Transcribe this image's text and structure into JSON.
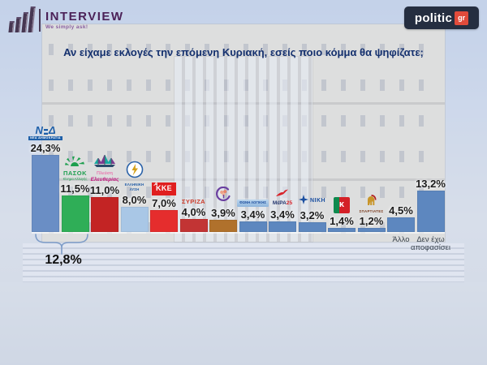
{
  "header": {
    "interview_logo": {
      "title": "INTERVIEW",
      "tagline": "We simply ask!",
      "brand_color": "#4b2158"
    },
    "politic_logo": {
      "text": "politic",
      "suffix": "gr",
      "bg_color": "#252e40",
      "accent_color": "#e14b3b"
    }
  },
  "title": "Αν είχαμε εκλογές την επόμενη Κυριακή, εσείς ποιο κόμμα θα ψηφίζατε;",
  "chart_data": {
    "type": "bar",
    "title": "Αν είχαμε εκλογές την επόμενη Κυριακή, εσείς ποιο κόμμα θα ψηφίζατε;",
    "unit": "%",
    "ylim": [
      0,
      25
    ],
    "grid": false,
    "legend": "none",
    "categories": [
      "Νέα Δημοκρατία",
      "ΠΑΣΟΚ Κίνημα Αλλαγής",
      "Πλεύση Ελευθερίας",
      "Ελληνική Λύση",
      "ΚΚΕ",
      "ΣΥΡΙΖΑ",
      "Νέα Αριστερά",
      "Φωνή Λογικής",
      "ΜέΡΑ25",
      "ΝΙΚΗ",
      "Κίνημα Δημοκρατίας",
      "Σπαρτιάτες",
      "Άλλο",
      "Δεν έχω αποφασίσει"
    ],
    "values": [
      24.3,
      11.5,
      11.0,
      8.0,
      7.0,
      4.0,
      3.9,
      3.4,
      3.4,
      3.2,
      1.4,
      1.2,
      4.5,
      13.2
    ],
    "annotation": {
      "label": "12,8%",
      "span_bar_indices": [
        0,
        1
      ],
      "bracket_color": "#7d9cc8"
    },
    "parties": [
      {
        "slug": "nea-dimokratia",
        "name": "Νέα Δημοκρατία",
        "value": 24.3,
        "label": "24,3%",
        "color": "#6a8ec5",
        "logo_kind": "nd",
        "logo_text": "ΝΔ",
        "logo_sub": "ΝΕΑ ΔΗΜΟΚΡΑΤΙΑ",
        "logo_color": "#1e5fa8"
      },
      {
        "slug": "pasok",
        "name": "ΠΑΣΟΚ Κίνημα Αλλαγής",
        "value": 11.5,
        "label": "11,5%",
        "color": "#2fae57",
        "logo_kind": "pasok",
        "logo_text": "ΠΑΣΟΚ",
        "logo_sub": "Κίνημα Αλλαγής",
        "logo_color": "#1d9f4e"
      },
      {
        "slug": "plefsi-eleftherias",
        "name": "Πλεύση Ελευθερίας",
        "value": 11.0,
        "label": "11,0%",
        "color": "#c32424",
        "logo_kind": "plefsi",
        "logo_text": "Πλεύση",
        "logo_sub": "Ελευθερίας",
        "logo_color": "#c2187e"
      },
      {
        "slug": "elliniki-lysi",
        "name": "Ελληνική Λύση",
        "value": 8.0,
        "label": "8,0%",
        "color": "#a9c7e6",
        "logo_kind": "ellyn",
        "logo_text": "ΕΛΛΗΝΙΚΗ",
        "logo_sub": "ΛΥΣΗ",
        "logo_color": "#2b62a8"
      },
      {
        "slug": "kke",
        "name": "ΚΚΕ",
        "value": 7.0,
        "label": "7,0%",
        "color": "#e52d2d",
        "logo_kind": "kke",
        "logo_text": "ΚΚΕ",
        "logo_color": "#e01f1f"
      },
      {
        "slug": "syriza",
        "name": "ΣΥΡΙΖΑ",
        "value": 4.0,
        "label": "4,0%",
        "color": "#c23434",
        "logo_kind": "syriza",
        "logo_text": "ΣΥΡΙΖΑ",
        "logo_color": "#cc3b2a"
      },
      {
        "slug": "nea-aristera",
        "name": "Νέα Αριστερά",
        "value": 3.9,
        "label": "3,9%",
        "color": "#b0712c",
        "logo_kind": "flower",
        "logo_color": "#6a3fa0"
      },
      {
        "slug": "foni-logikis",
        "name": "Φωνή Λογικής",
        "value": 3.4,
        "label": "3,4%",
        "color": "#5d87bf",
        "logo_kind": "foni",
        "logo_text": "ΦΩΝΗ ΛΟΓΙΚΗΣ",
        "logo_color": "#1d4f9e"
      },
      {
        "slug": "mera25",
        "name": "ΜέΡΑ25",
        "value": 3.4,
        "label": "3,4%",
        "color": "#5d87bf",
        "logo_kind": "mera",
        "logo_text": "ΜέΡΑ",
        "logo_num": "25",
        "logo_color": "#23356e"
      },
      {
        "slug": "niki",
        "name": "ΝΙΚΗ",
        "value": 3.2,
        "label": "3,2%",
        "color": "#5d87bf",
        "logo_kind": "niki",
        "logo_text": "ΝΙΚΗ",
        "logo_color": "#1b4fa0"
      },
      {
        "slug": "kinima-dimokratias",
        "name": "Κίνημα Δημοκρατίας",
        "value": 1.4,
        "label": "1,4%",
        "color": "#5d87bf",
        "logo_kind": "kinima",
        "logo_text": "κ",
        "logo_color": "#d42027"
      },
      {
        "slug": "spartiates",
        "name": "Σπαρτιάτες",
        "value": 1.2,
        "label": "1,2%",
        "color": "#5d87bf",
        "logo_kind": "spartiates",
        "logo_text": "ΣΠΑΡΤΙΑΤΕΣ",
        "logo_color": "#7a3b1e"
      },
      {
        "slug": "allo",
        "name": "Άλλο",
        "value": 4.5,
        "label": "4,5%",
        "color": "#5d87bf",
        "logo_kind": "none",
        "below_label": "Άλλο"
      },
      {
        "slug": "den-exo-apofasisei",
        "name": "Δεν έχω αποφασίσει",
        "value": 13.2,
        "label": "13,2%",
        "color": "#5d87bf",
        "logo_kind": "none",
        "below_label": "Δεν έχω αποφασίσει"
      }
    ]
  }
}
